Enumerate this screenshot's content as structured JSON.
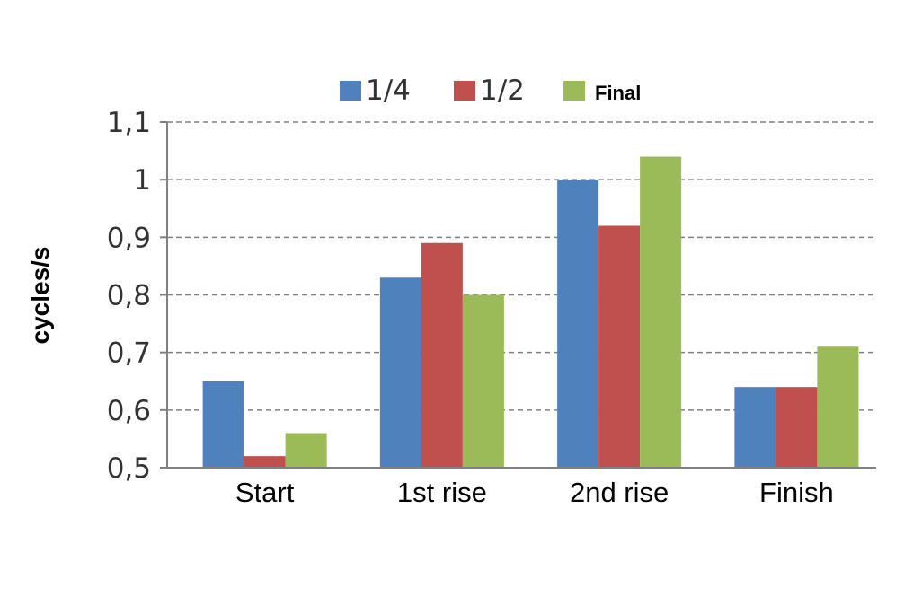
{
  "chart_data": {
    "type": "bar",
    "categories": [
      "Start",
      "1st rise",
      "2nd rise",
      "Finish"
    ],
    "series": [
      {
        "name": "1/4",
        "color": "#4f81bd",
        "values": [
          0.65,
          0.83,
          1.0,
          0.64
        ]
      },
      {
        "name": "1/2",
        "color": "#c0504d",
        "values": [
          0.52,
          0.89,
          0.92,
          0.64
        ]
      },
      {
        "name": "Final",
        "color": "#9bbb59",
        "values": [
          0.56,
          0.8,
          1.04,
          0.71
        ]
      }
    ],
    "ylabel": "cycles/s",
    "xlabel": "",
    "ylim": [
      0.5,
      1.1
    ],
    "yticks": [
      0.5,
      0.6,
      0.7,
      0.8,
      0.9,
      1.0,
      1.1
    ],
    "ytick_labels": [
      "0,5",
      "0,6",
      "0,7",
      "0,8",
      "0,9",
      "1",
      "1,1"
    ],
    "grid": "horizontal dashed",
    "legend_position": "top"
  }
}
